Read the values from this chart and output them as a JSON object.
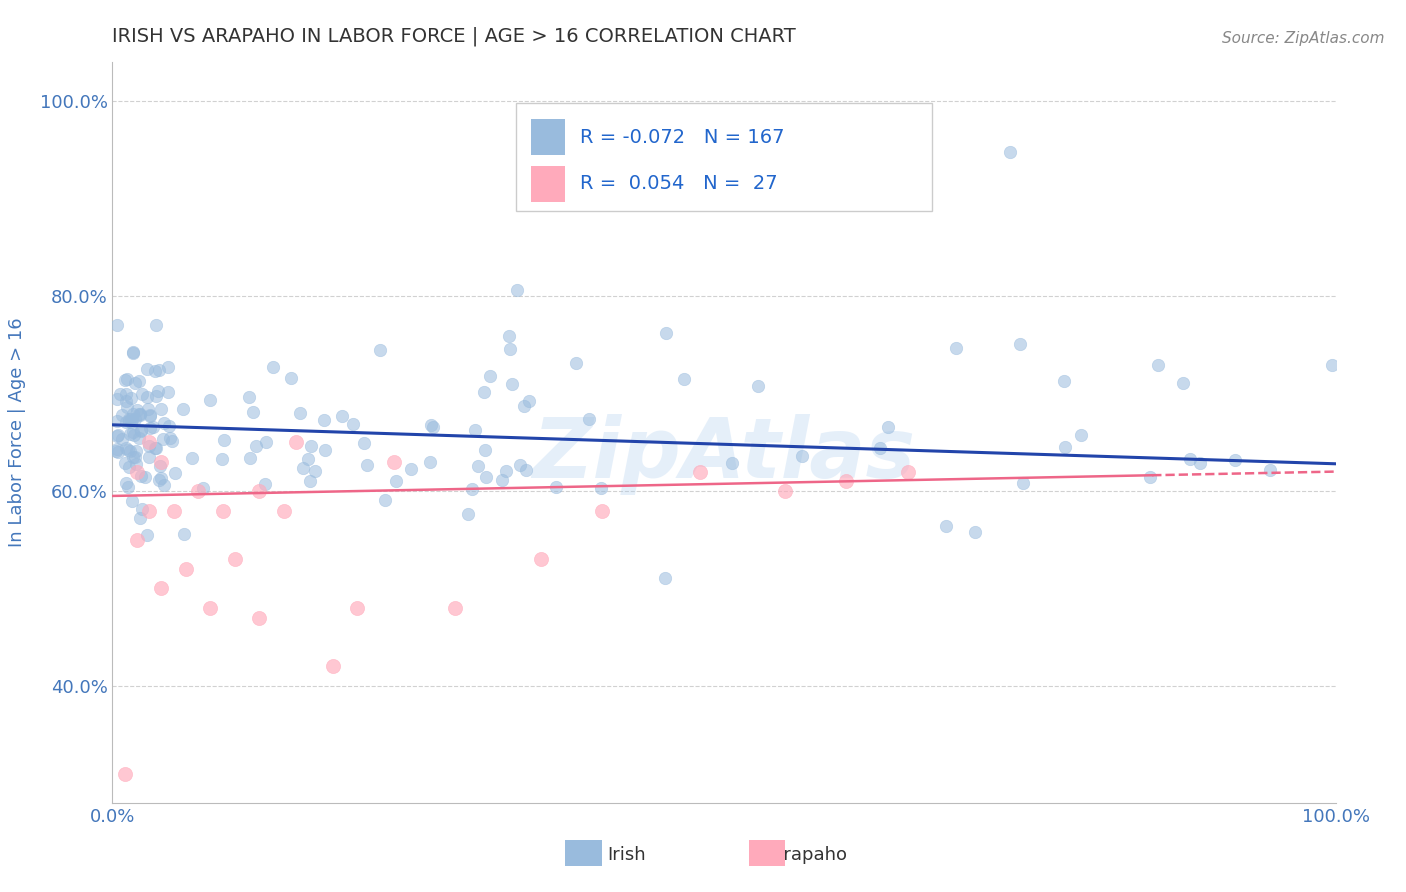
{
  "title": "IRISH VS ARAPAHO IN LABOR FORCE | AGE > 16 CORRELATION CHART",
  "source": "Source: ZipAtlas.com",
  "ylabel": "In Labor Force | Age > 16",
  "xlim": [
    0.0,
    1.0
  ],
  "ylim": [
    0.28,
    1.04
  ],
  "yticks": [
    0.4,
    0.6,
    0.8,
    1.0
  ],
  "ytick_labels": [
    "40.0%",
    "60.0%",
    "80.0%",
    "100.0%"
  ],
  "irish_R": -0.072,
  "irish_N": 167,
  "arapaho_R": 0.054,
  "arapaho_N": 27,
  "irish_color": "#99BBDD",
  "arapaho_color": "#FFAABB",
  "irish_line_color": "#2244AA",
  "arapaho_line_color": "#EE6688",
  "background_color": "#FFFFFF",
  "grid_color": "#CCCCCC",
  "title_color": "#333333",
  "axis_label_color": "#4477BB",
  "tick_label_color": "#4477BB",
  "watermark_text": "ZipAtlas",
  "watermark_color": "#AACCEE",
  "legend_R_color": "#222266",
  "legend_N_color": "#2266CC",
  "scatter_size": 80
}
